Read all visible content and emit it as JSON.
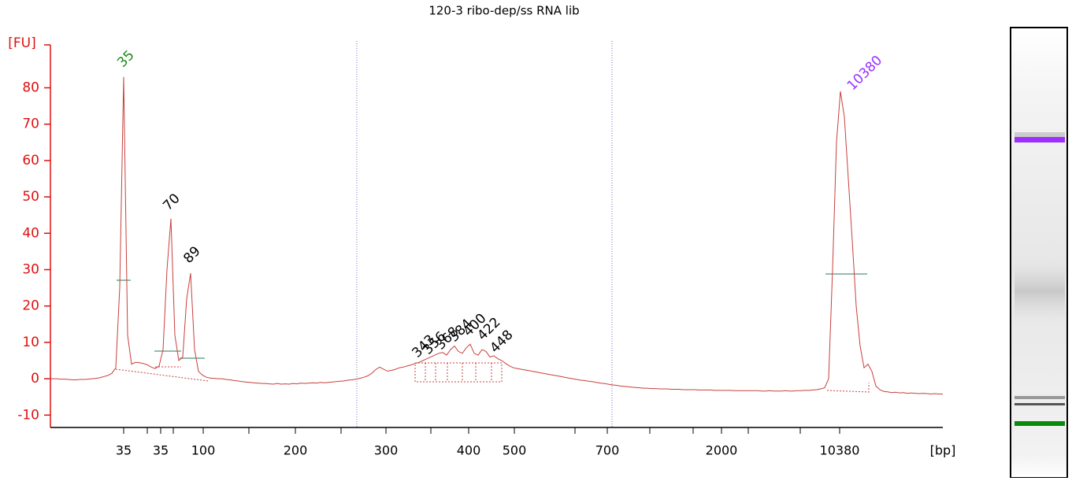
{
  "chart_data": {
    "type": "line",
    "title": "120-3 ribo-dep/ss RNA lib",
    "y_label": "[FU]",
    "x_label": "[bp]",
    "ylim": [
      -13.4,
      91.8
    ],
    "yticks": [
      -10,
      0,
      10,
      20,
      30,
      40,
      50,
      60,
      70,
      80
    ],
    "x_tick_labels": [
      "35",
      "35",
      "100",
      "200",
      "300",
      "400",
      "500",
      "700",
      "2000",
      "10380"
    ],
    "series": [
      {
        "name": "trace",
        "color": "#c8403c",
        "values": [
          0,
          0,
          0,
          -0.1,
          -0.1,
          -0.2,
          -0.3,
          -0.3,
          -0.2,
          -0.2,
          -0.1,
          0,
          0.1,
          0.3,
          0.6,
          0.9,
          1.5,
          3,
          25,
          83,
          12,
          4,
          4.5,
          4.4,
          4.2,
          3.8,
          3.2,
          2.8,
          3.5,
          8,
          30,
          44,
          12,
          5,
          6,
          22,
          29,
          8,
          2,
          1,
          0.4,
          0.2,
          0.1,
          0,
          0,
          -0.2,
          -0.3,
          -0.5,
          -0.6,
          -0.8,
          -0.9,
          -1,
          -1.1,
          -1.2,
          -1.3,
          -1.3,
          -1.4,
          -1.5,
          -1.3,
          -1.5,
          -1.4,
          -1.5,
          -1.3,
          -1.4,
          -1.2,
          -1.3,
          -1.2,
          -1.1,
          -1.2,
          -1.0,
          -1.1,
          -1.0,
          -0.9,
          -0.8,
          -0.7,
          -0.6,
          -0.4,
          -0.3,
          -0.1,
          0.1,
          0.4,
          0.8,
          1.5,
          2.5,
          3.2,
          2.6,
          2.1,
          2.3,
          2.6,
          3,
          3.2,
          3.5,
          3.8,
          4.2,
          4.5,
          5,
          5.5,
          6,
          6.5,
          7,
          7.2,
          6.5,
          8,
          9,
          7.5,
          7,
          8.5,
          9.5,
          7,
          6.5,
          8,
          7.5,
          6,
          6.3,
          5.5,
          5,
          4.2,
          3.5,
          3,
          2.8,
          2.6,
          2.4,
          2.2,
          2,
          1.8,
          1.6,
          1.4,
          1.2,
          1,
          0.8,
          0.6,
          0.4,
          0.2,
          0,
          -0.2,
          -0.4,
          -0.5,
          -0.7,
          -0.8,
          -1,
          -1.2,
          -1.3,
          -1.5,
          -1.7,
          -1.8,
          -2,
          -2.1,
          -2.2,
          -2.3,
          -2.4,
          -2.5,
          -2.6,
          -2.6,
          -2.7,
          -2.7,
          -2.8,
          -2.8,
          -2.8,
          -2.9,
          -2.9,
          -2.9,
          -3,
          -3,
          -3,
          -3,
          -3.1,
          -3.1,
          -3.1,
          -3.1,
          -3.2,
          -3.2,
          -3.2,
          -3.2,
          -3.2,
          -3.3,
          -3.3,
          -3.3,
          -3.3,
          -3.3,
          -3.3,
          -3.3,
          -3.4,
          -3.4,
          -3.3,
          -3.4,
          -3.4,
          -3.4,
          -3.3,
          -3.4,
          -3.4,
          -3.3,
          -3.3,
          -3.2,
          -3.2,
          -3.1,
          -3,
          -2.8,
          -2.5,
          0,
          30,
          65,
          79,
          72,
          55,
          38,
          20,
          9,
          3,
          4,
          2,
          -2,
          -3,
          -3.5,
          -3.6,
          -3.8,
          -3.7,
          -3.9,
          -3.8,
          -4,
          -3.9,
          -4,
          -4.1,
          -4,
          -4.1,
          -4.2,
          -4.1,
          -4.2,
          -4.2
        ]
      }
    ],
    "peak_labels": [
      {
        "text": "35",
        "color": "#1a8a1a"
      },
      {
        "text": "70",
        "color": "#000000"
      },
      {
        "text": "89",
        "color": "#000000"
      },
      {
        "text": "343",
        "color": "#000000"
      },
      {
        "text": "356",
        "color": "#000000"
      },
      {
        "text": "368",
        "color": "#000000"
      },
      {
        "text": "384",
        "color": "#000000"
      },
      {
        "text": "400",
        "color": "#000000"
      },
      {
        "text": "422",
        "color": "#000000"
      },
      {
        "text": "448",
        "color": "#000000"
      },
      {
        "text": "10380",
        "color": "#9b30ff"
      }
    ]
  }
}
